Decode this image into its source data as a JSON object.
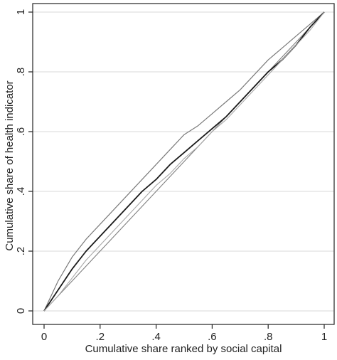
{
  "chart_data": {
    "type": "line",
    "title": "",
    "xlabel": "Cumulative share ranked by social capital",
    "ylabel": "Cumulative share of health indicator",
    "xlim": [
      0,
      1
    ],
    "ylim": [
      0,
      1
    ],
    "x_ticks": [
      0,
      0.2,
      0.4,
      0.6,
      0.8,
      1
    ],
    "x_tick_labels": [
      "0",
      ".2",
      ".4",
      ".6",
      ".8",
      "1"
    ],
    "y_ticks": [
      0,
      0.2,
      0.4,
      0.6,
      0.8,
      1
    ],
    "y_tick_labels": [
      "0",
      ".2",
      ".4",
      ".6",
      ".8",
      "1"
    ],
    "grid": "horizontal",
    "legend": "none",
    "colors": {
      "equality": "#808080",
      "upper_band": "#7a7a7a",
      "concentration": "#1a1a1a",
      "lower_band": "#a8a8a8",
      "grid": "#d9d9d9",
      "axis": "#222222"
    },
    "series": [
      {
        "x": [
          0,
          1
        ],
        "y": [
          0,
          1
        ],
        "style": "equality"
      },
      {
        "x": [
          0,
          0.05,
          0.1,
          0.15,
          0.2,
          0.25,
          0.3,
          0.35,
          0.4,
          0.45,
          0.5,
          0.55,
          0.6,
          0.65,
          0.7,
          0.75,
          0.8,
          0.85,
          0.9,
          0.95,
          1
        ],
        "y": [
          0,
          0.1,
          0.18,
          0.24,
          0.29,
          0.34,
          0.39,
          0.44,
          0.49,
          0.54,
          0.59,
          0.62,
          0.66,
          0.7,
          0.74,
          0.79,
          0.84,
          0.88,
          0.92,
          0.96,
          1
        ],
        "style": "upper_band"
      },
      {
        "x": [
          0,
          0.05,
          0.1,
          0.15,
          0.2,
          0.25,
          0.3,
          0.35,
          0.4,
          0.45,
          0.5,
          0.55,
          0.6,
          0.65,
          0.7,
          0.75,
          0.8,
          0.85,
          0.9,
          0.95,
          1
        ],
        "y": [
          0,
          0.07,
          0.14,
          0.2,
          0.25,
          0.3,
          0.35,
          0.4,
          0.44,
          0.49,
          0.53,
          0.57,
          0.61,
          0.65,
          0.7,
          0.75,
          0.8,
          0.84,
          0.89,
          0.95,
          1
        ],
        "style": "concentration"
      },
      {
        "x": [
          0,
          0.05,
          0.1,
          0.15,
          0.2,
          0.25,
          0.3,
          0.35,
          0.4,
          0.45,
          0.5,
          0.55,
          0.6,
          0.65,
          0.7,
          0.75,
          0.8,
          0.85,
          0.9,
          0.95,
          1
        ],
        "y": [
          0,
          0.05,
          0.11,
          0.17,
          0.22,
          0.27,
          0.32,
          0.37,
          0.42,
          0.46,
          0.51,
          0.55,
          0.6,
          0.64,
          0.69,
          0.74,
          0.79,
          0.84,
          0.89,
          0.94,
          1
        ],
        "style": "lower_band"
      }
    ]
  }
}
